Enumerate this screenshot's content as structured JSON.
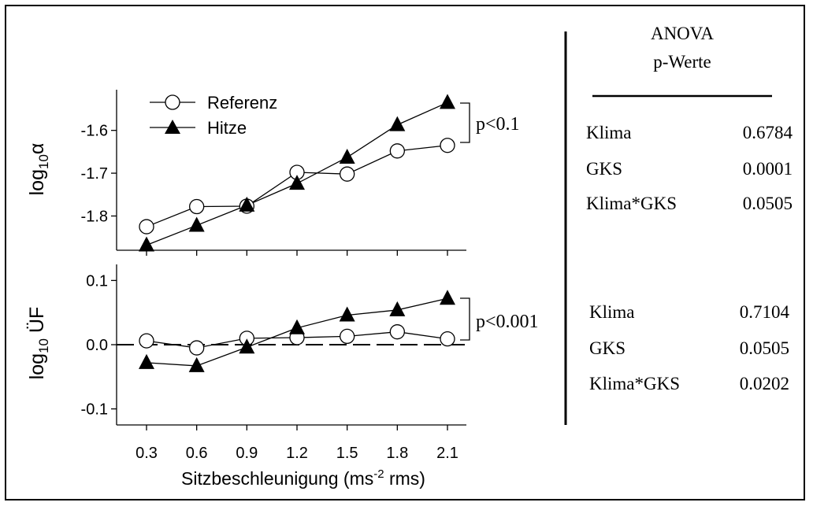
{
  "chart_data": [
    {
      "type": "line",
      "ylabel_main": "log",
      "ylabel_sub": "10",
      "ylabel_sym": "α",
      "x": [
        0.3,
        0.6,
        0.9,
        1.2,
        1.5,
        1.8,
        2.1
      ],
      "series": [
        {
          "name": "Referenz",
          "marker": "open-circle",
          "values": [
            -1.825,
            -1.778,
            -1.777,
            -1.698,
            -1.702,
            -1.648,
            -1.635
          ]
        },
        {
          "name": "Hitze",
          "marker": "filled-triangle",
          "values": [
            -1.868,
            -1.822,
            -1.775,
            -1.724,
            -1.663,
            -1.587,
            -1.535
          ]
        }
      ],
      "yticks": [
        "-1.6",
        "-1.7",
        "-1.8"
      ],
      "ytick_values": [
        -1.6,
        -1.7,
        -1.8
      ],
      "ylim": [
        -1.88,
        -1.505
      ],
      "annotation": "p<0.1",
      "legend_placement": "top-left"
    },
    {
      "type": "line",
      "ylabel_main": "log",
      "ylabel_sub": "10",
      "ylabel_sym": " ÜF",
      "x": [
        0.3,
        0.6,
        0.9,
        1.2,
        1.5,
        1.8,
        2.1
      ],
      "series": [
        {
          "name": "Referenz",
          "marker": "open-circle",
          "values": [
            0.006,
            -0.005,
            0.01,
            0.011,
            0.013,
            0.02,
            0.009
          ]
        },
        {
          "name": "Hitze",
          "marker": "filled-triangle",
          "values": [
            -0.028,
            -0.033,
            -0.004,
            0.026,
            0.046,
            0.054,
            0.072
          ]
        }
      ],
      "reference_line": 0.0,
      "yticks": [
        "0.1",
        "0.0",
        "-0.1"
      ],
      "ytick_values": [
        0.1,
        0.0,
        -0.1
      ],
      "ylim": [
        -0.125,
        0.125
      ],
      "annotation": "p<0.001",
      "xticks": [
        "0.3",
        "0.6",
        "0.9",
        "1.2",
        "1.5",
        "1.8",
        "2.1"
      ],
      "xlabel_pre": "Sitzbeschleunigung (ms",
      "xlabel_sup": "-2",
      "xlabel_post": " rms)"
    }
  ],
  "anova": {
    "title_line1": "ANOVA",
    "title_line2": "p-Werte",
    "group1": [
      {
        "label": "Klima",
        "value": "0.6784"
      },
      {
        "label": "GKS",
        "value": "0.0001"
      },
      {
        "label": "Klima*GKS",
        "value": "0.0505"
      }
    ],
    "group2": [
      {
        "label": "Klima",
        "value": "0.7104"
      },
      {
        "label": "GKS",
        "value": "0.0505"
      },
      {
        "label": "Klima*GKS",
        "value": "0.0202"
      }
    ]
  }
}
